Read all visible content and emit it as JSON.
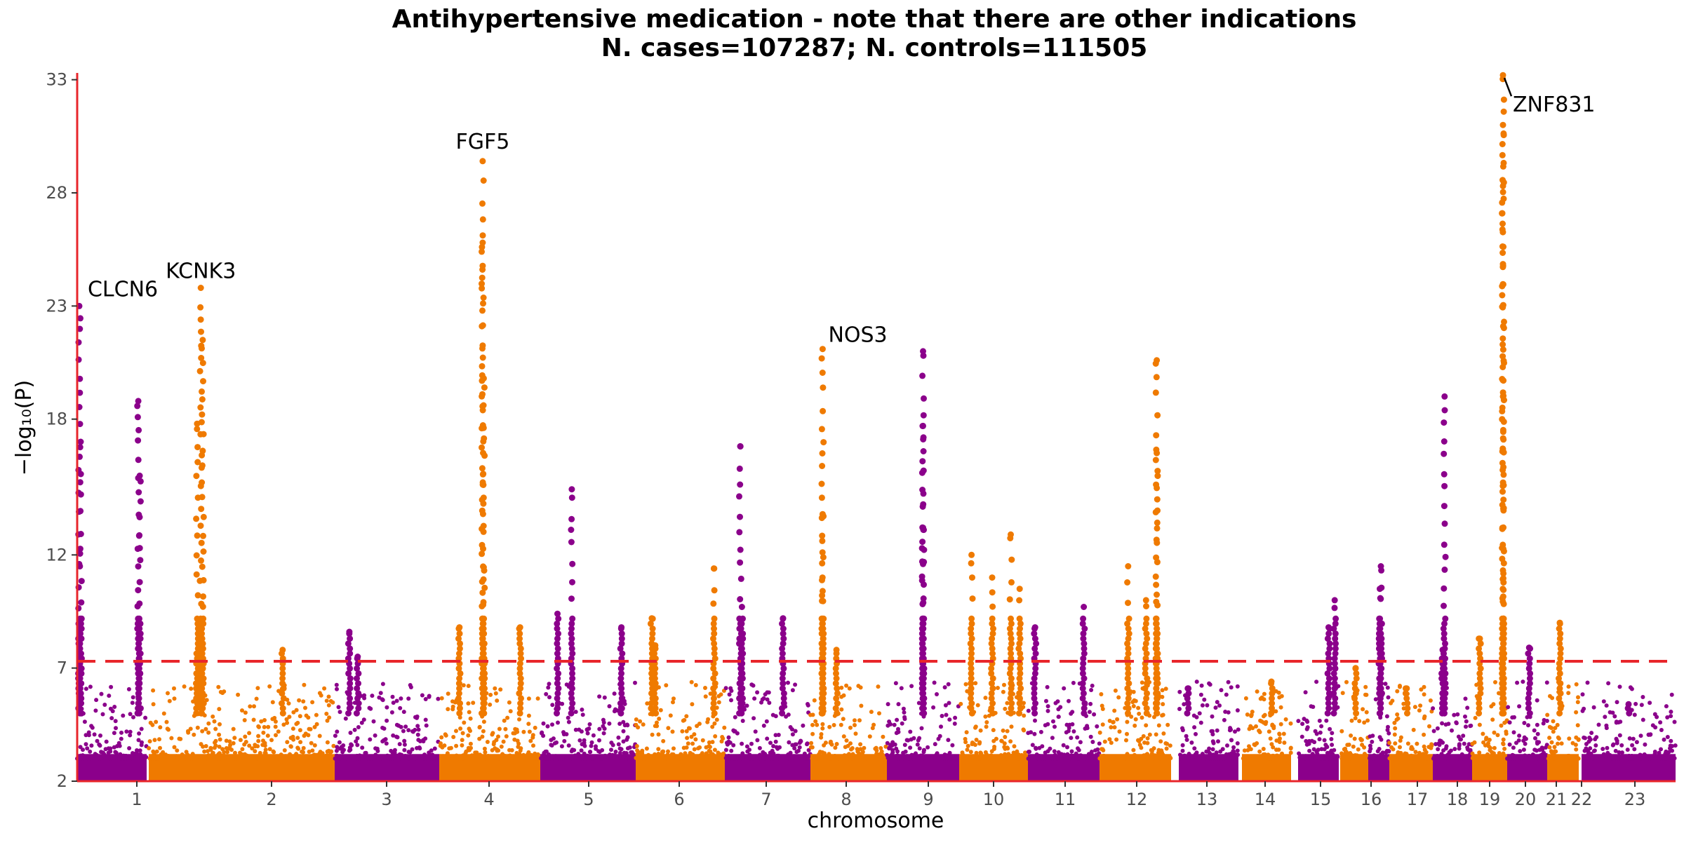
{
  "chart_data": {
    "type": "scatter",
    "subtype": "manhattan",
    "title": "Antihypertensive medication - note that there are other indications",
    "subtitle": "N. cases=107287; N. controls=111505",
    "xlabel": "chromosome",
    "ylabel": "−log₁₀(P)",
    "yticks": [
      2,
      7,
      12,
      18,
      23,
      28,
      33
    ],
    "ylim": [
      2,
      33.3
    ],
    "significance_threshold": 7.3,
    "colors": {
      "odd": "#8b008b",
      "even": "#ef7a00",
      "threshold": "#e8262b",
      "axis": "#e8262b"
    },
    "chromosomes": [
      {
        "label": "1",
        "peaks": [
          [
            0.03,
            23.0
          ],
          [
            0.88,
            18.8
          ],
          [
            0.05,
            17.0
          ],
          [
            0.9,
            15.5
          ]
        ]
      },
      {
        "label": "2",
        "peaks": [
          [
            0.28,
            23.8
          ],
          [
            0.29,
            21.5
          ],
          [
            0.26,
            17.8
          ],
          [
            0.72,
            7.8
          ]
        ]
      },
      {
        "label": "3",
        "peaks": [
          [
            0.14,
            8.6
          ],
          [
            0.22,
            7.5
          ]
        ]
      },
      {
        "label": "4",
        "peaks": [
          [
            0.43,
            29.4
          ],
          [
            0.43,
            25.8
          ],
          [
            0.44,
            19.8
          ],
          [
            0.2,
            8.8
          ],
          [
            0.8,
            8.8
          ]
        ]
      },
      {
        "label": "5",
        "peaks": [
          [
            0.33,
            14.9
          ],
          [
            0.18,
            9.4
          ],
          [
            0.85,
            8.8
          ]
        ]
      },
      {
        "label": "6",
        "peaks": [
          [
            0.18,
            9.2
          ],
          [
            0.22,
            8.0
          ],
          [
            0.88,
            11.4
          ]
        ]
      },
      {
        "label": "7",
        "peaks": [
          [
            0.18,
            16.8
          ],
          [
            0.2,
            9.7
          ],
          [
            0.68,
            9.2
          ]
        ]
      },
      {
        "label": "8",
        "peaks": [
          [
            0.16,
            21.1
          ],
          [
            0.16,
            13.8
          ],
          [
            0.16,
            10.4
          ],
          [
            0.34,
            7.8
          ]
        ]
      },
      {
        "label": "9",
        "peaks": [
          [
            0.5,
            21.0
          ],
          [
            0.5,
            17.7
          ],
          [
            0.5,
            13.2
          ]
        ]
      },
      {
        "label": "10",
        "peaks": [
          [
            0.18,
            12.0
          ],
          [
            0.48,
            11.0
          ],
          [
            0.75,
            12.9
          ],
          [
            0.88,
            10.5
          ]
        ]
      },
      {
        "label": "11",
        "peaks": [
          [
            0.1,
            8.8
          ],
          [
            0.78,
            9.7
          ]
        ]
      },
      {
        "label": "12",
        "peaks": [
          [
            0.8,
            20.6
          ],
          [
            0.8,
            16.5
          ],
          [
            0.4,
            11.5
          ],
          [
            0.65,
            10.0
          ]
        ]
      },
      {
        "label": "13",
        "peaks": [
          [
            0.15,
            6.1
          ]
        ]
      },
      {
        "label": "14",
        "peaks": [
          [
            0.6,
            6.4
          ]
        ]
      },
      {
        "label": "15",
        "peaks": [
          [
            0.75,
            8.8
          ],
          [
            0.9,
            10.0
          ]
        ]
      },
      {
        "label": "16",
        "peaks": [
          [
            0.55,
            7.0
          ]
        ]
      },
      {
        "label": "17",
        "peaks": [
          [
            0.6,
            11.5
          ],
          [
            0.55,
            10.5
          ]
        ]
      },
      {
        "label": "18",
        "peaks": [
          [
            0.4,
            6.1
          ]
        ]
      },
      {
        "label": "19",
        "peaks": [
          [
            0.3,
            19.0
          ],
          [
            0.25,
            7.8
          ]
        ]
      },
      {
        "label": "20",
        "peaks": [
          [
            0.88,
            33.2
          ],
          [
            0.88,
            31.0
          ],
          [
            0.88,
            28.3
          ],
          [
            0.88,
            19.0
          ],
          [
            0.22,
            8.3
          ]
        ]
      },
      {
        "label": "21",
        "peaks": [
          [
            0.55,
            7.9
          ]
        ]
      },
      {
        "label": "22",
        "peaks": [
          [
            0.4,
            9.0
          ]
        ]
      },
      {
        "label": "23",
        "peaks": [
          [
            0.5,
            5.4
          ]
        ]
      }
    ],
    "annotations": [
      {
        "label": "CLCN6",
        "chrom": 1,
        "pos": 0.03,
        "y": 23.0
      },
      {
        "label": "KCNK3",
        "chrom": 2,
        "pos": 0.28,
        "y": 23.8
      },
      {
        "label": "FGF5",
        "chrom": 4,
        "pos": 0.43,
        "y": 29.4
      },
      {
        "label": "NOS3",
        "chrom": 8,
        "pos": 0.16,
        "y": 21.1
      },
      {
        "label": "ZNF831",
        "chrom": 20,
        "pos": 0.88,
        "y": 33.2
      }
    ]
  }
}
